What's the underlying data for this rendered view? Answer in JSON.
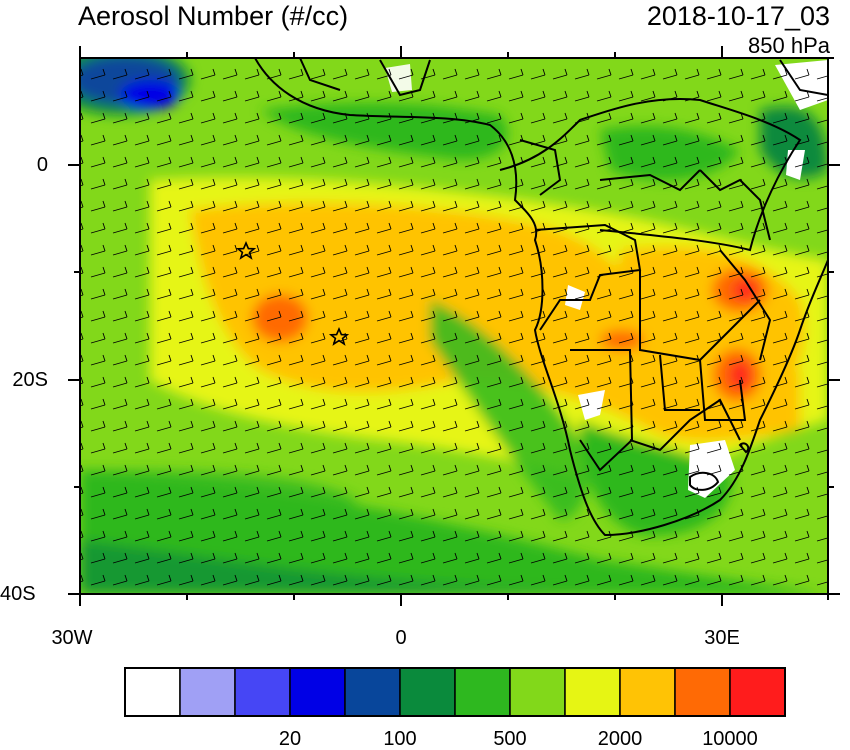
{
  "title": "Aerosol Number (#/cc)",
  "valid_time": "2018-10-17_03",
  "level": "850 hPa",
  "axes": {
    "latitude_ticks": [
      {
        "value": 0,
        "label": "0"
      },
      {
        "value": -20,
        "label": "20S"
      },
      {
        "value": -40,
        "label": "40S"
      }
    ],
    "longitude_ticks": [
      {
        "value": -30,
        "label": "30W"
      },
      {
        "value": 0,
        "label": "0"
      },
      {
        "value": 30,
        "label": "30E"
      }
    ],
    "lon_range": [
      -30,
      40
    ],
    "lat_range": [
      -40,
      10
    ]
  },
  "colorbar": {
    "colors": [
      "#ffffff",
      "#a0a0f5",
      "#4646f5",
      "#0000e6",
      "#08469b",
      "#0a8a3c",
      "#2eb81f",
      "#82d81a",
      "#e6f514",
      "#ffc305",
      "#ff6a05",
      "#ff1c1c"
    ],
    "labels": [
      {
        "after_bin": 2,
        "label": "20"
      },
      {
        "after_bin": 4,
        "label": "100"
      },
      {
        "after_bin": 6,
        "label": "500"
      },
      {
        "after_bin": 8,
        "label": "2000"
      },
      {
        "after_bin": 10,
        "label": "10000"
      }
    ]
  },
  "map_layers": [
    "aerosol-number-fill",
    "wind-barbs",
    "country-boundaries"
  ],
  "markers": [
    {
      "symbol": "star",
      "lon": -14.5,
      "lat": -8.0
    },
    {
      "symbol": "star",
      "lon": -5.7,
      "lat": -15.9
    }
  ]
}
